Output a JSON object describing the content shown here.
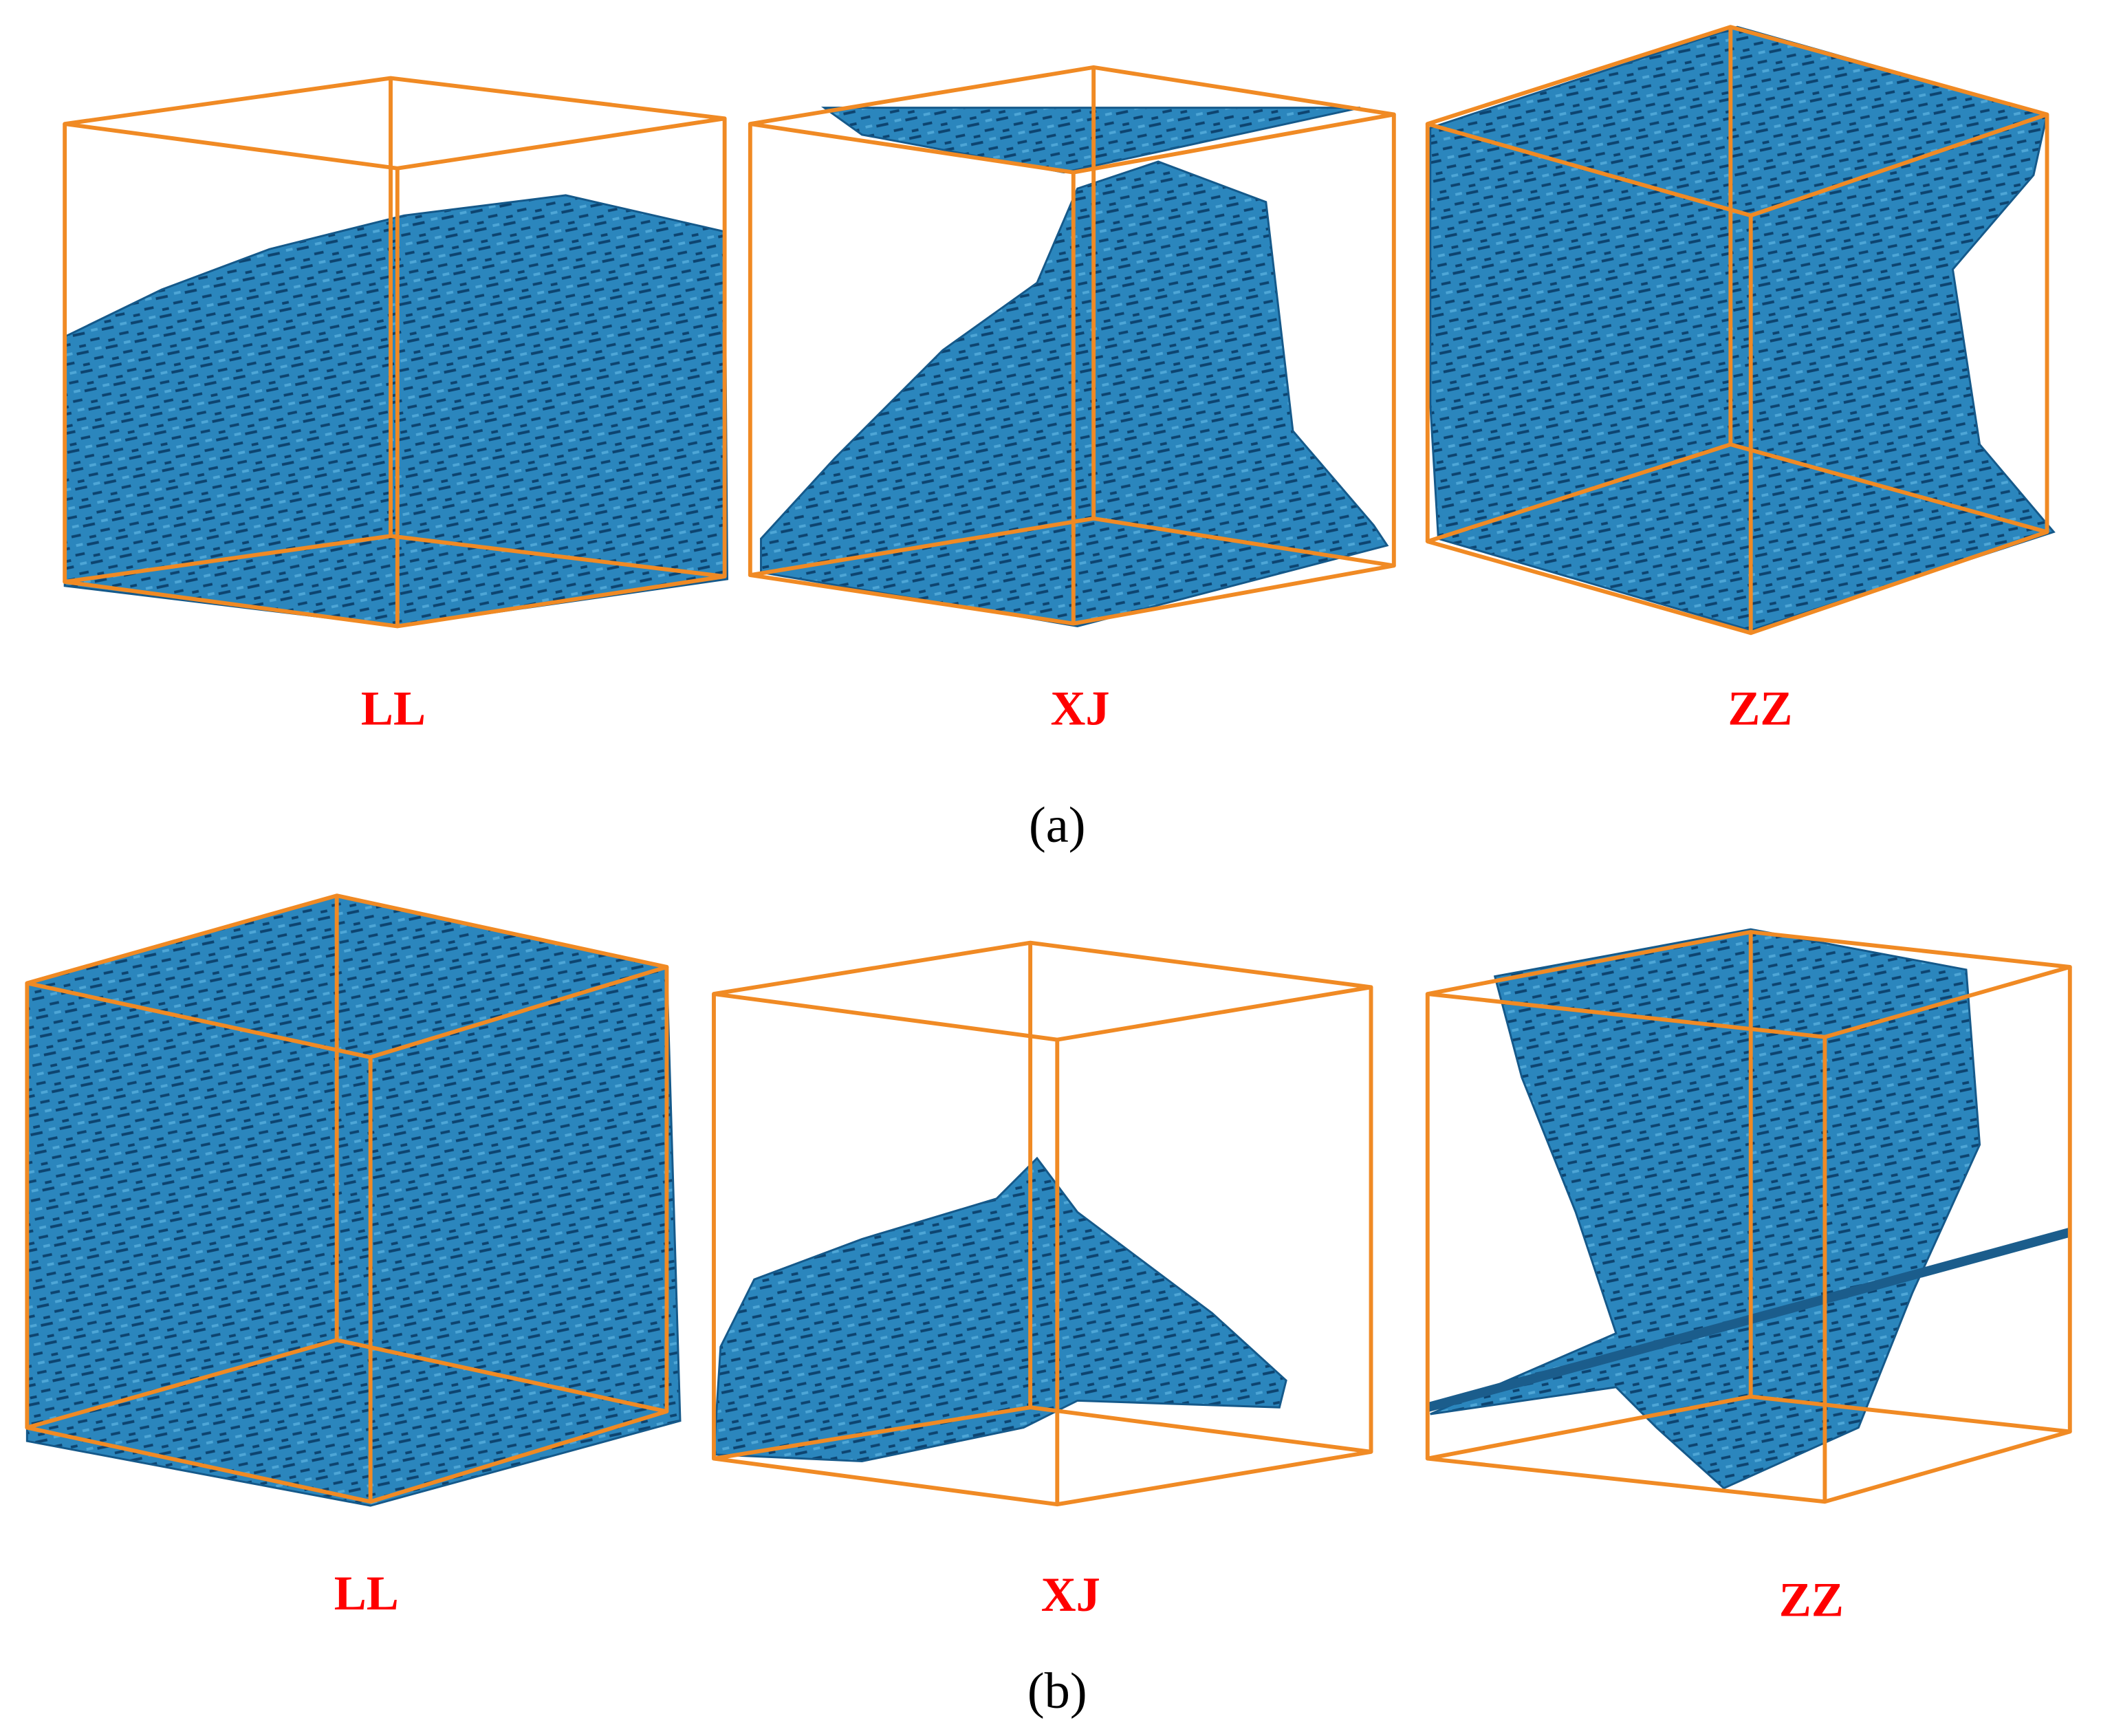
{
  "panels": [
    {
      "caption": "(a)",
      "cubes": [
        {
          "label": "LL"
        },
        {
          "label": "XJ"
        },
        {
          "label": "ZZ"
        }
      ]
    },
    {
      "caption": "(b)",
      "cubes": [
        {
          "label": "LL"
        },
        {
          "label": "XJ"
        },
        {
          "label": "ZZ"
        }
      ]
    }
  ]
}
